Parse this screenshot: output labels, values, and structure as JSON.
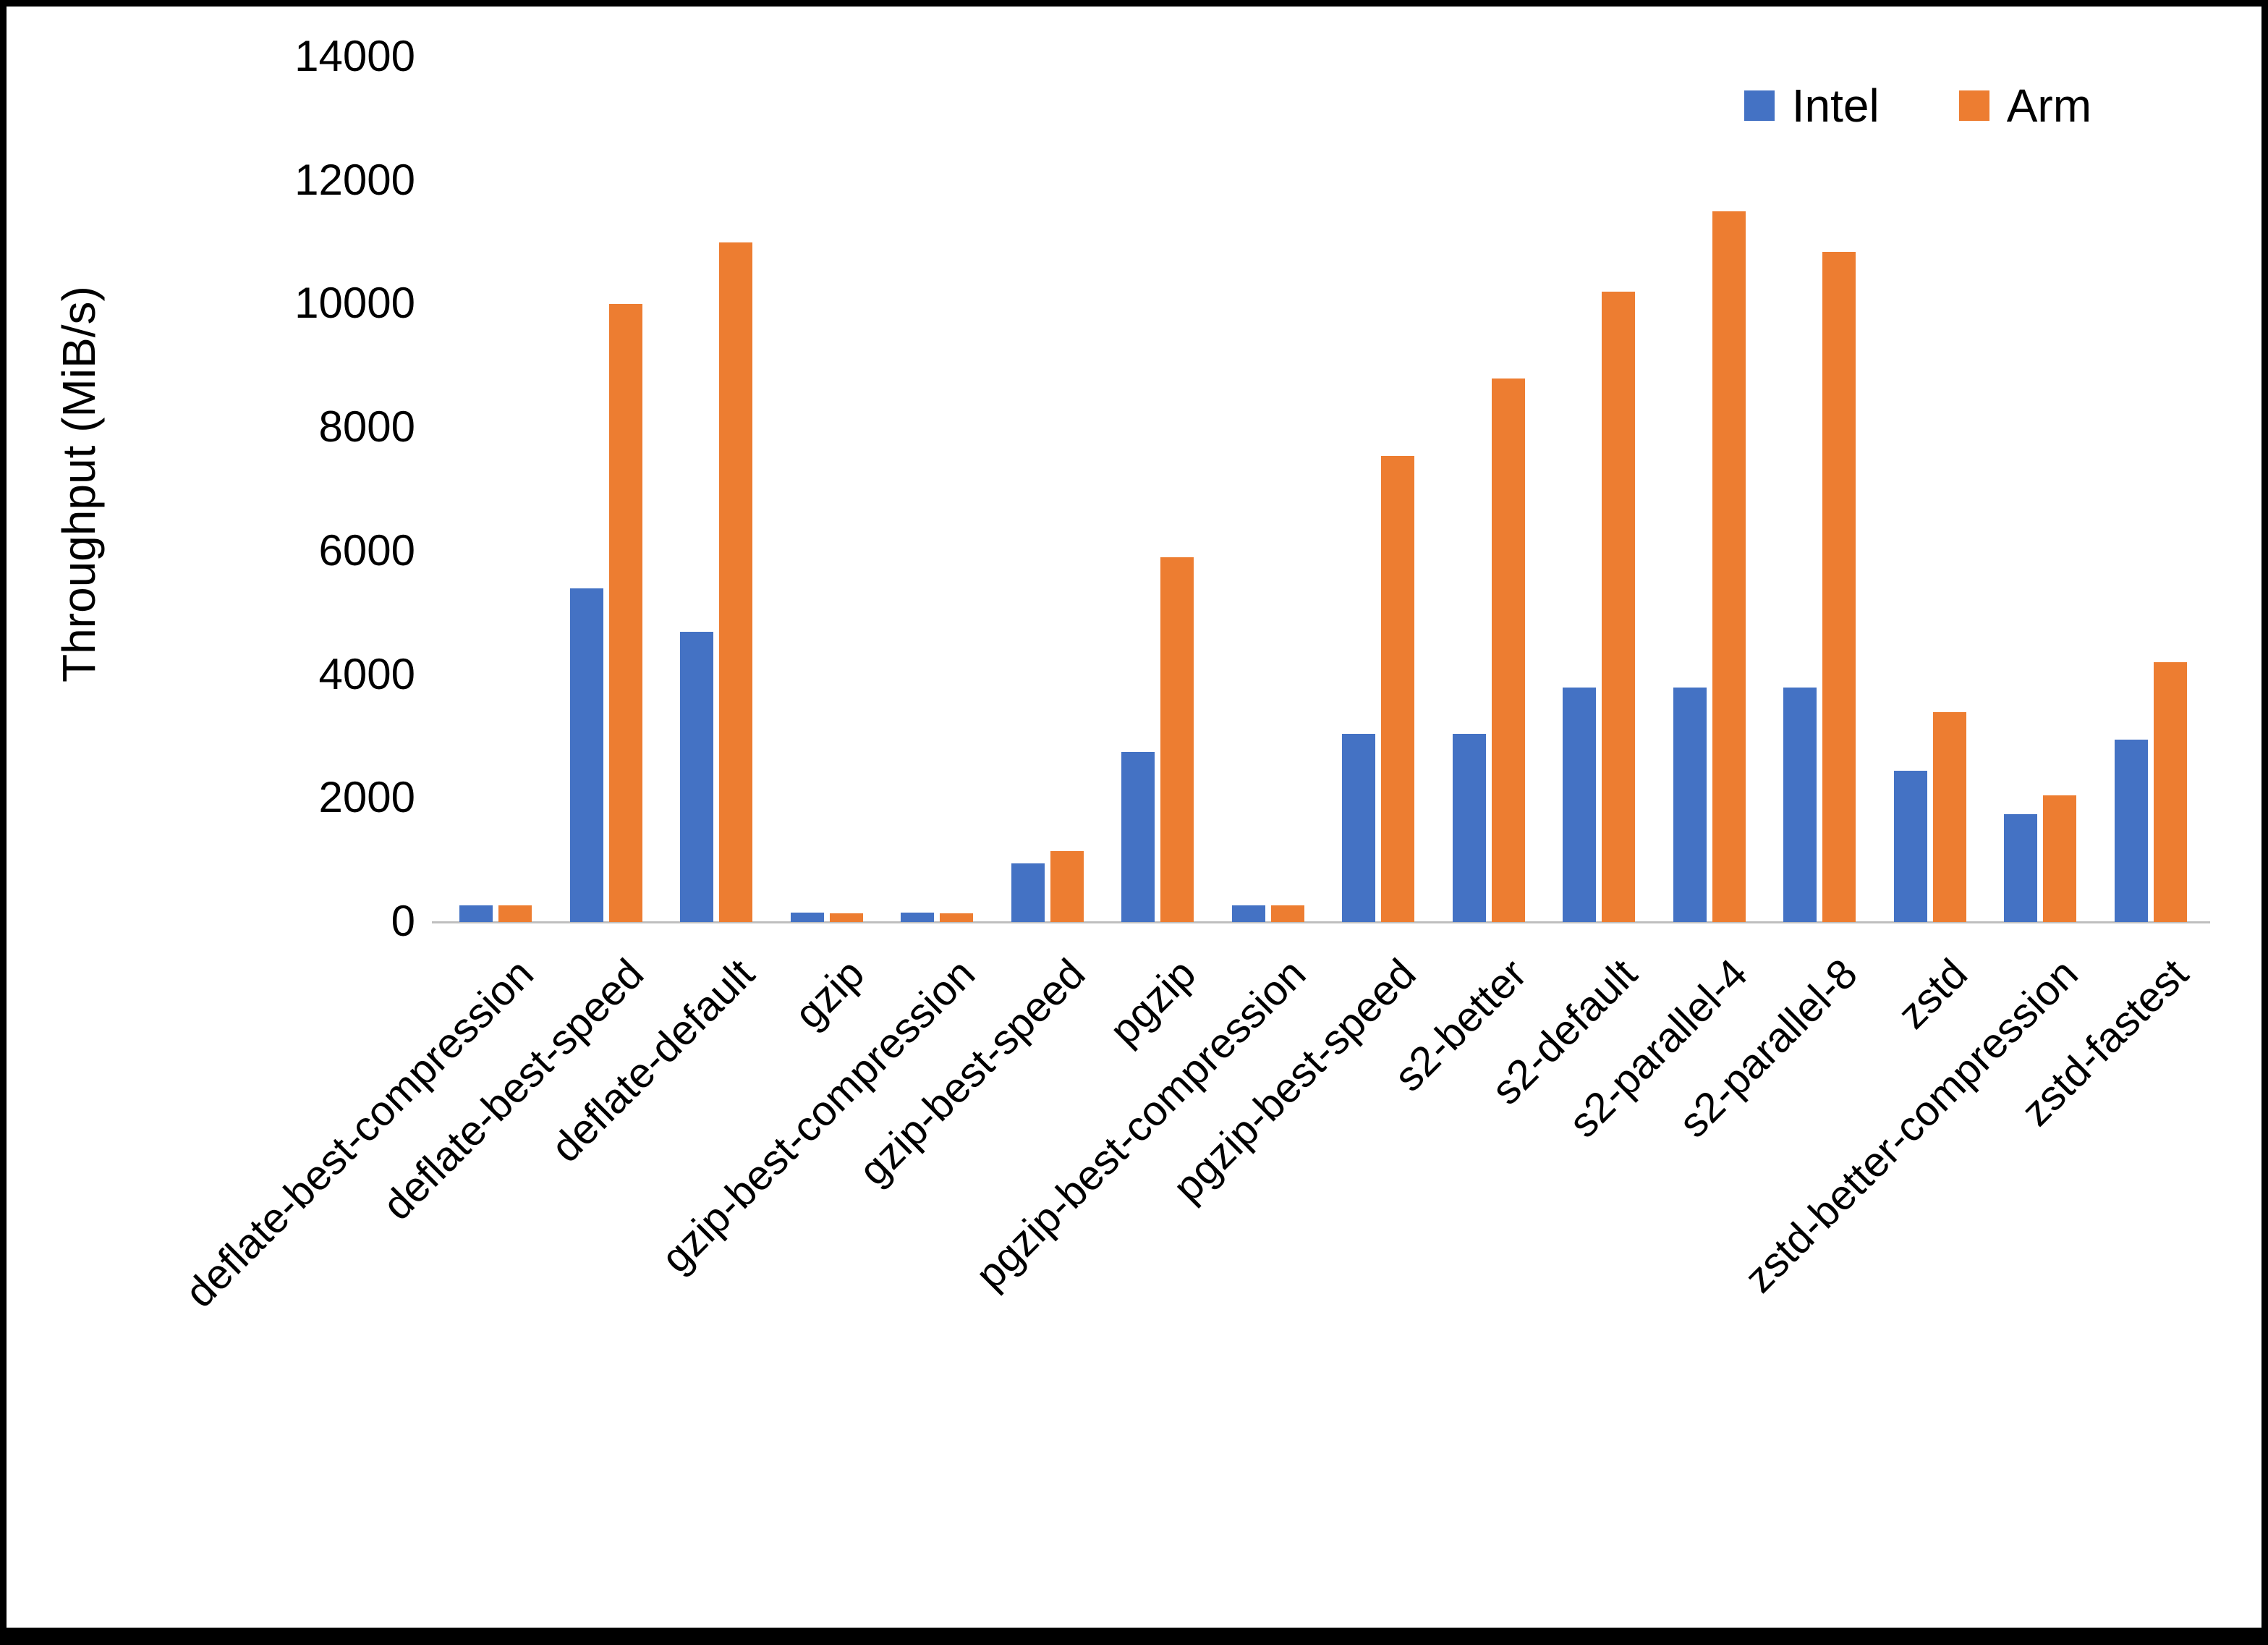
{
  "chart_data": {
    "type": "bar",
    "title": "",
    "xlabel": "",
    "ylabel": "Throughput (MiB/s)",
    "ylim": [
      0,
      14000
    ],
    "ytick_step": 2000,
    "grid": false,
    "legend_position": "top-right",
    "categories": [
      "deflate-best-compression",
      "deflate-best-speed",
      "deflate-default",
      "gzip",
      "gzip-best-compression",
      "gzip-best-speed",
      "pgzip",
      "pgzip-best-compression",
      "pgzip-best-speed",
      "s2-better",
      "s2-default",
      "s2-parallel-4",
      "s2-parallel-8",
      "zstd",
      "zstd-better-compression",
      "zstd-fastest"
    ],
    "series": [
      {
        "name": "Intel",
        "color": "#4472C4",
        "values": [
          270,
          5400,
          4700,
          150,
          150,
          950,
          2750,
          270,
          3050,
          3050,
          3800,
          3800,
          3800,
          2450,
          1750,
          2950
        ]
      },
      {
        "name": "Arm",
        "color": "#ED7D31",
        "values": [
          270,
          10000,
          11000,
          140,
          140,
          1150,
          5900,
          270,
          7550,
          8800,
          10200,
          11500,
          10850,
          3400,
          2050,
          4200
        ]
      }
    ]
  }
}
